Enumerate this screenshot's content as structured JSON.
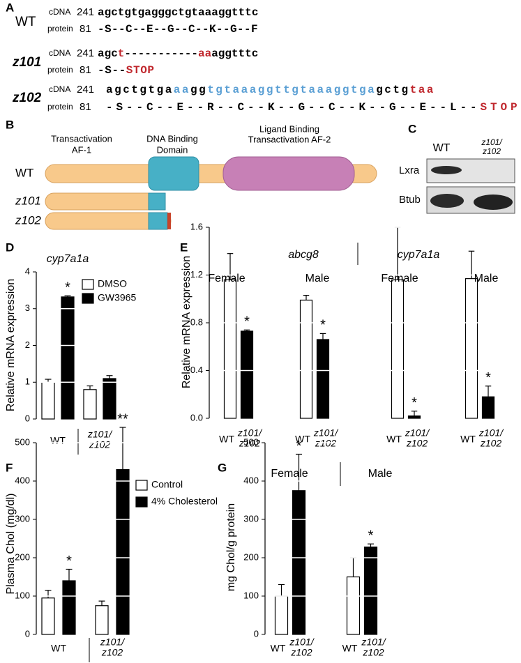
{
  "panel_letters": [
    "A",
    "B",
    "C",
    "D",
    "E",
    "F",
    "G"
  ],
  "sequences": {
    "rows": [
      {
        "genotype": "WT",
        "cdna_label": "cDNA",
        "cdna_start": 241,
        "cdna": [
          {
            "text": "agctgtgagggctgtaaaggtttc",
            "color": "#000000"
          }
        ],
        "protein_label": "protein",
        "protein_start": 81,
        "protein": [
          {
            "text": "-S--C--E--G--C--K--G--F",
            "color": "#000000"
          }
        ]
      },
      {
        "genotype": "z101",
        "cdna_label": "cDNA",
        "cdna_start": 241,
        "cdna": [
          {
            "text": "agc",
            "color": "#000000"
          },
          {
            "text": "t",
            "color": "#c0272d"
          },
          {
            "text": "-----------",
            "color": "#000000"
          },
          {
            "text": "aa",
            "color": "#c0272d"
          },
          {
            "text": "aggtttc",
            "color": "#000000"
          }
        ],
        "protein_label": "protein",
        "protein_start": 81,
        "protein": [
          {
            "text": "-S--",
            "color": "#000000"
          },
          {
            "text": "STOP",
            "color": "#c0272d"
          }
        ]
      },
      {
        "genotype": "z102",
        "cdna_label": "cDNA",
        "cdna_start": 241,
        "cdna": [
          {
            "text": "agctgtga",
            "color": "#000000"
          },
          {
            "text": "aa",
            "color": "#5a9fd4"
          },
          {
            "text": "gg",
            "color": "#000000"
          },
          {
            "text": "tgtaaaggttgtaaaggtga",
            "color": "#5a9fd4"
          },
          {
            "text": "gctg",
            "color": "#000000"
          },
          {
            "text": "taa",
            "color": "#c0272d"
          }
        ],
        "protein_label": "protein",
        "protein_start": 81,
        "protein": [
          {
            "text": "-S--C--E--R--C--K--G--C--K--G--E--L--",
            "color": "#000000"
          },
          {
            "text": "STOP",
            "color": "#c0272d"
          }
        ]
      }
    ]
  },
  "domains": {
    "labels": [
      [
        "Transactivation",
        "AF-1"
      ],
      [
        "DNA Binding",
        "Domain"
      ],
      [
        "Ligand Binding",
        "Transactivation AF-2"
      ]
    ],
    "constructs": [
      "WT",
      "z101",
      "z102"
    ]
  },
  "blot": {
    "lanes": [
      [
        "WT"
      ],
      [
        "z101/",
        "z102"
      ]
    ],
    "proteins": [
      "Lxra",
      "Btub"
    ]
  },
  "chart_data": [
    {
      "type": "bar",
      "title": "cyp7a1a",
      "ylabel": "Relative mRNA expression",
      "groups": [
        [
          "WT"
        ],
        [
          "z101/",
          "z102"
        ]
      ],
      "ylim": [
        0,
        4
      ],
      "yticks": [
        0,
        1,
        2,
        3,
        4
      ],
      "grid_color": "#ffffff",
      "series": [
        {
          "name": "DMSO",
          "color": "#ffffff",
          "values": [
            1.0,
            0.8
          ],
          "errors": [
            0.08,
            0.1
          ]
        },
        {
          "name": "GW3965",
          "color": "#000000",
          "values": [
            3.32,
            1.1
          ],
          "errors": [
            0.03,
            0.08
          ]
        }
      ],
      "annotations": [
        {
          "text": "*",
          "series": 1,
          "group": 0
        }
      ]
    },
    {
      "type": "bar",
      "ylabel": "Relative mRNA expression",
      "headers": [
        "abcg8",
        "cyp7a1a"
      ],
      "categories": [
        "Female",
        "Male",
        "Female",
        "Male"
      ],
      "bar_labels": [
        [
          "WT"
        ],
        [
          "z101/",
          "z102"
        ]
      ],
      "ylim": [
        0,
        1.6
      ],
      "yticks": [
        {
          "value": 0,
          "label": "0.0"
        },
        0.4,
        0.8,
        1.2,
        1.6
      ],
      "grid_color": "#ffffff",
      "series": [
        {
          "color": "#ffffff",
          "values": [
            1.16,
            0.99,
            1.16,
            1.17
          ],
          "errors": [
            0.22,
            0.04,
            0.44,
            0.23
          ]
        },
        {
          "color": "#000000",
          "values": [
            0.73,
            0.66,
            0.02,
            0.18
          ],
          "errors": [
            0.01,
            0.05,
            0.04,
            0.09
          ]
        }
      ],
      "annotations": [
        {
          "text": "*",
          "series": 1,
          "group": 0
        },
        {
          "text": "*",
          "series": 1,
          "group": 1
        },
        {
          "text": "*",
          "series": 1,
          "group": 2
        },
        {
          "text": "*",
          "series": 1,
          "group": 3
        }
      ]
    },
    {
      "type": "bar",
      "ylabel": "Plasma Chol (mg/dl)",
      "groups": [
        [
          "WT"
        ],
        [
          "z101/",
          "z102"
        ]
      ],
      "ylim": [
        0,
        500
      ],
      "yticks": [
        0,
        100,
        200,
        300,
        400,
        500
      ],
      "grid_color": "#ffffff",
      "series": [
        {
          "name": "Control",
          "color": "#ffffff",
          "values": [
            95,
            75
          ],
          "errors": [
            20,
            12
          ]
        },
        {
          "name": "4% Cholesterol",
          "color": "#000000",
          "values": [
            140,
            430
          ],
          "errors": [
            30,
            110
          ]
        }
      ],
      "annotations": [
        {
          "text": "*",
          "series": 1,
          "group": 0
        },
        {
          "text": "**",
          "series": 1,
          "group": 1
        }
      ]
    },
    {
      "type": "bar",
      "ylabel": "mg Chol/g protein",
      "categories": [
        "Female",
        "Male"
      ],
      "bar_labels": [
        [
          "WT"
        ],
        [
          "z101/",
          "z102"
        ]
      ],
      "ylim": [
        0,
        500
      ],
      "yticks": [
        0,
        100,
        200,
        300,
        400,
        500
      ],
      "grid_color": "#ffffff",
      "series": [
        {
          "color": "#ffffff",
          "values": [
            100,
            150
          ],
          "errors": [
            30,
            50
          ]
        },
        {
          "color": "#000000",
          "values": [
            375,
            228
          ],
          "errors": [
            95,
            8
          ]
        }
      ],
      "annotations": [
        {
          "text": "*",
          "series": 1,
          "group": 0
        },
        {
          "text": "*",
          "series": 1,
          "group": 1
        }
      ]
    }
  ]
}
